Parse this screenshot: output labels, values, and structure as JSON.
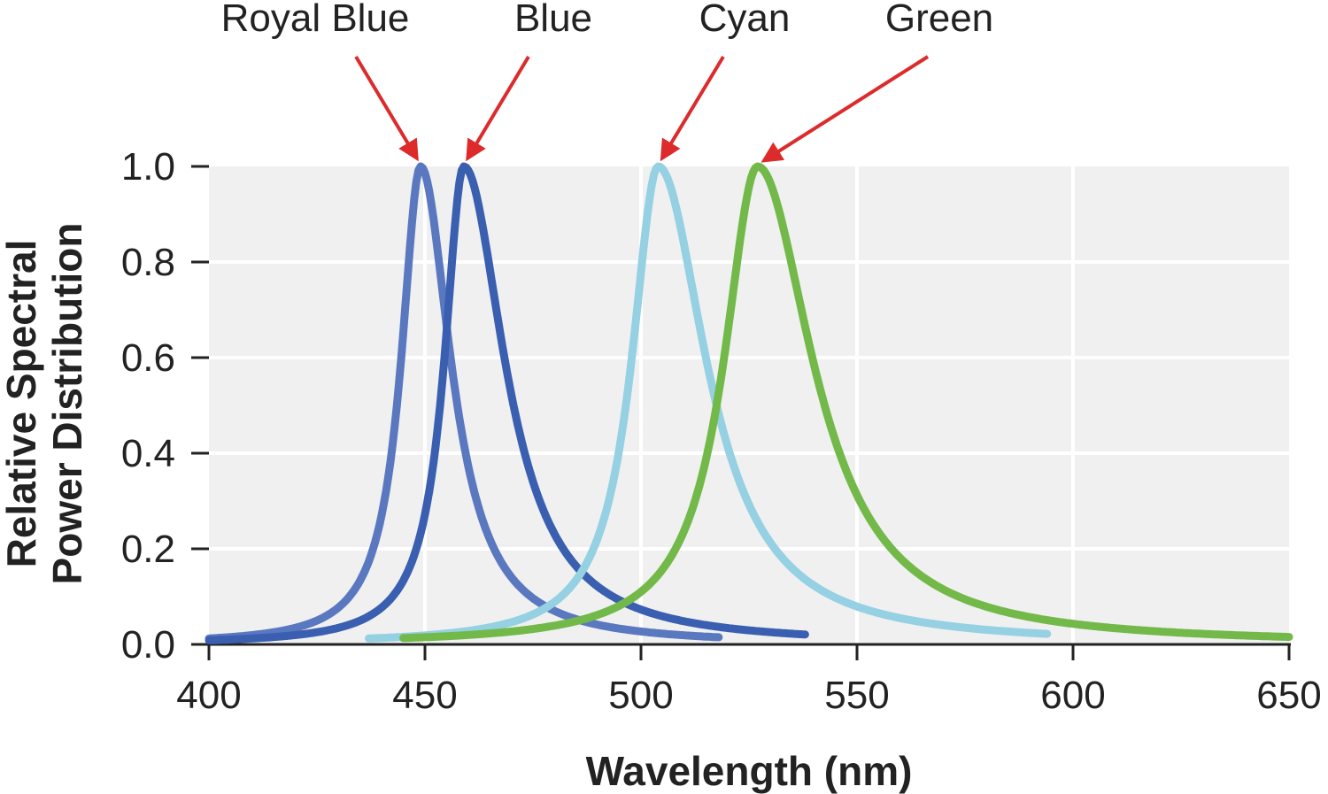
{
  "chart_data": {
    "type": "line",
    "xlabel": "Wavelength (nm)",
    "ylabel_lines": [
      "Relative Spectral",
      "Power Distribution"
    ],
    "xlim": [
      400,
      650
    ],
    "ylim": [
      0,
      1.0
    ],
    "x_ticks": [
      400,
      450,
      500,
      550,
      600,
      650
    ],
    "y_ticks": [
      "0.0",
      "0.2",
      "0.4",
      "0.6",
      "0.8",
      "1.0"
    ],
    "grid": true,
    "series": [
      {
        "name": "Royal Blue",
        "color": "#5a78c0",
        "peak": 449,
        "width_left": 11,
        "width_right": 17,
        "x_range": [
          400,
          518
        ]
      },
      {
        "name": "Blue",
        "color": "#3a5fb0",
        "peak": 459,
        "width_left": 11,
        "width_right": 23,
        "x_range": [
          400,
          538
        ]
      },
      {
        "name": "Cyan",
        "color": "#95d0e3",
        "peak": 504,
        "width_left": 15,
        "width_right": 27,
        "x_range": [
          437,
          594
        ]
      },
      {
        "name": "Green",
        "color": "#72b94a",
        "peak": 527,
        "width_left": 19,
        "width_right": 31,
        "x_range": [
          445,
          650
        ]
      }
    ],
    "arrow_color": "#dd2a2a"
  }
}
